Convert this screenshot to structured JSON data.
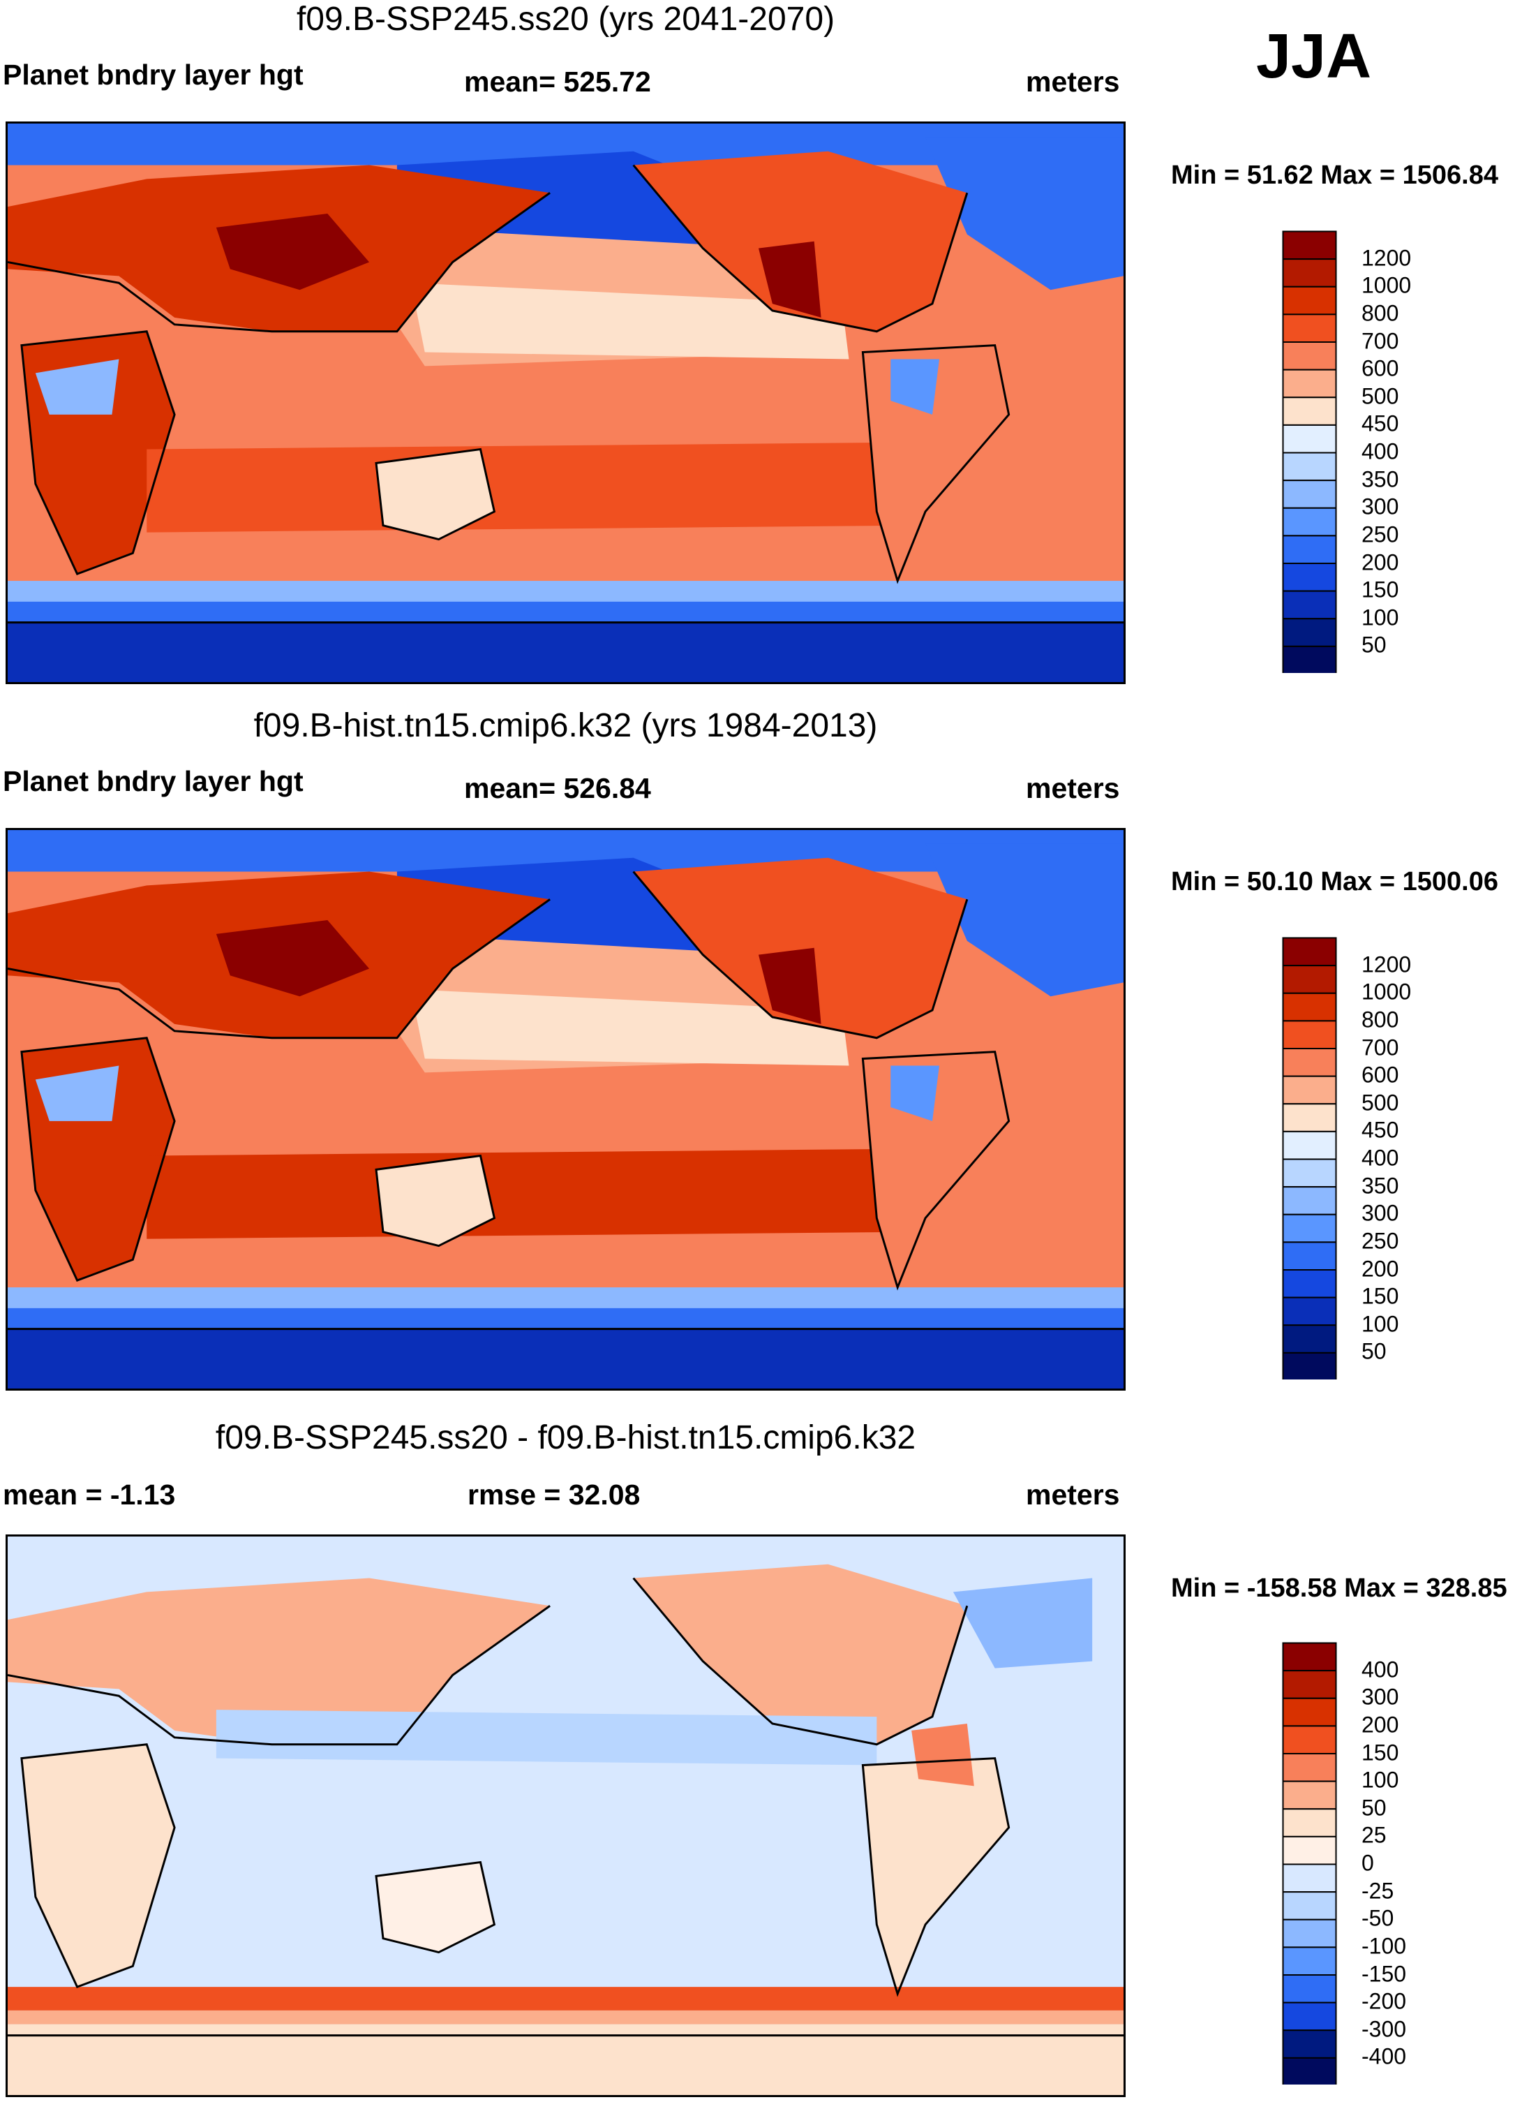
{
  "season": "JJA",
  "panels": [
    {
      "title": "f09.B-SSP245.ss20 (yrs 2041-2070)",
      "left_label": "Planet bndry layer hgt",
      "center_label": "mean= 525.72",
      "right_label": "meters",
      "minmax": "Min =  51.62 Max = 1506.84",
      "colorbar": {
        "levels": [
          "1200",
          "1000",
          "800",
          "700",
          "600",
          "500",
          "450",
          "400",
          "350",
          "300",
          "250",
          "200",
          "150",
          "100",
          "50"
        ],
        "colors": [
          "#8b0000",
          "#b31a00",
          "#d83100",
          "#f05020",
          "#f8805a",
          "#fbae8c",
          "#fde2cc",
          "#e2efff",
          "#b8d6ff",
          "#8cb8ff",
          "#5a96ff",
          "#2f6df5",
          "#1548e0",
          "#0a2fb8",
          "#001a80",
          "#000a5e"
        ]
      }
    },
    {
      "title": "f09.B-hist.tn15.cmip6.k32 (yrs 1984-2013)",
      "left_label": "Planet bndry layer hgt",
      "center_label": "mean= 526.84",
      "right_label": "meters",
      "minmax": "Min =  50.10 Max = 1500.06",
      "colorbar": {
        "levels": [
          "1200",
          "1000",
          "800",
          "700",
          "600",
          "500",
          "450",
          "400",
          "350",
          "300",
          "250",
          "200",
          "150",
          "100",
          "50"
        ],
        "colors": [
          "#8b0000",
          "#b31a00",
          "#d83100",
          "#f05020",
          "#f8805a",
          "#fbae8c",
          "#fde2cc",
          "#e2efff",
          "#b8d6ff",
          "#8cb8ff",
          "#5a96ff",
          "#2f6df5",
          "#1548e0",
          "#0a2fb8",
          "#001a80",
          "#000a5e"
        ]
      }
    },
    {
      "title": "f09.B-SSP245.ss20 - f09.B-hist.tn15.cmip6.k32",
      "left_label": "mean =  -1.13",
      "center_label": "rmse =  32.08",
      "right_label": "meters",
      "minmax": "Min = -158.58 Max = 328.85",
      "colorbar": {
        "levels": [
          "400",
          "300",
          "200",
          "150",
          "100",
          "50",
          "25",
          "0",
          "-25",
          "-50",
          "-100",
          "-150",
          "-200",
          "-300",
          "-400"
        ],
        "colors": [
          "#8b0000",
          "#b31a00",
          "#d83100",
          "#f05020",
          "#f8805a",
          "#fbae8c",
          "#fde2cc",
          "#fff0e6",
          "#d8e8ff",
          "#b8d6ff",
          "#8cb8ff",
          "#5a96ff",
          "#2f6df5",
          "#1548e0",
          "#001a80",
          "#000a5e"
        ]
      }
    }
  ],
  "chart_data": [
    {
      "type": "heatmap",
      "title": "f09.B-SSP245.ss20 (yrs 2041-2070)",
      "variable": "Planet bndry layer hgt",
      "units": "meters",
      "mean": 525.72,
      "min": 51.62,
      "max": 1506.84,
      "contour_levels": [
        50,
        100,
        150,
        200,
        250,
        300,
        350,
        400,
        450,
        500,
        600,
        700,
        800,
        1000,
        1200
      ]
    },
    {
      "type": "heatmap",
      "title": "f09.B-hist.tn15.cmip6.k32 (yrs 1984-2013)",
      "variable": "Planet bndry layer hgt",
      "units": "meters",
      "mean": 526.84,
      "min": 50.1,
      "max": 1500.06,
      "contour_levels": [
        50,
        100,
        150,
        200,
        250,
        300,
        350,
        400,
        450,
        500,
        600,
        700,
        800,
        1000,
        1200
      ]
    },
    {
      "type": "heatmap",
      "title": "f09.B-SSP245.ss20 - f09.B-hist.tn15.cmip6.k32",
      "units": "meters",
      "mean": -1.13,
      "rmse": 32.08,
      "min": -158.58,
      "max": 328.85,
      "contour_levels": [
        -400,
        -300,
        -200,
        -150,
        -100,
        -50,
        -25,
        0,
        25,
        50,
        100,
        150,
        200,
        300,
        400
      ]
    }
  ]
}
